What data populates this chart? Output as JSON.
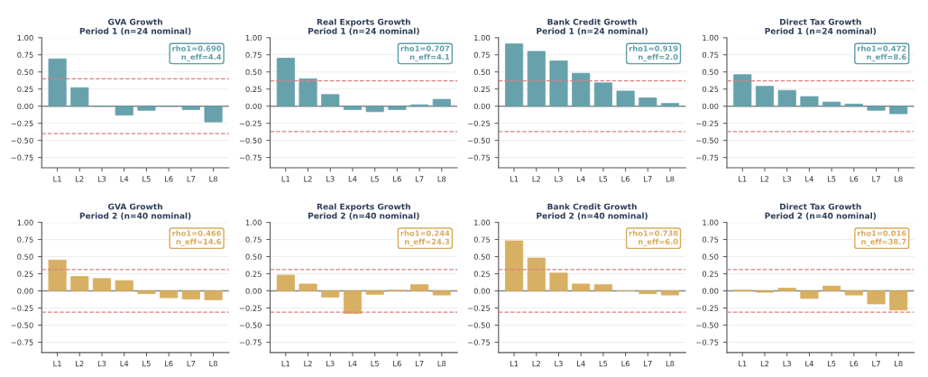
{
  "chart_data": [
    {
      "type": "bar",
      "title": "GVA Growth\nPeriod 1 (n=24 nominal)",
      "categories": [
        "L1",
        "L2",
        "L3",
        "L4",
        "L5",
        "L6",
        "L7",
        "L8"
      ],
      "values": [
        0.69,
        0.27,
        0,
        -0.13,
        -0.06,
        0,
        -0.05,
        -0.23
      ],
      "color": "#5f9ea8",
      "ylim": [
        -0.9,
        1.0
      ],
      "yticks": [
        {
          "value": -0.75,
          "label": "−0.75"
        },
        {
          "value": -0.5,
          "label": "−0.50"
        },
        {
          "value": -0.25,
          "label": "−0.25"
        },
        {
          "value": 0,
          "label": "0.00"
        },
        {
          "value": 0.25,
          "label": "0.25"
        },
        {
          "value": 0.5,
          "label": "0.50"
        },
        {
          "value": 0.75,
          "label": "0.75"
        },
        {
          "value": 1.0,
          "label": "1.00"
        }
      ],
      "grid": "y",
      "ref_lines": [
        {
          "axis": "y",
          "value": 0,
          "color": "#888888",
          "line_style": "solid"
        },
        {
          "axis": "y",
          "value": 0.4,
          "color": "#d98080",
          "line_style": "dashed"
        },
        {
          "axis": "y",
          "value": -0.4,
          "color": "#d98080",
          "line_style": "dashed"
        }
      ],
      "annotations": [
        "rho1=0.690\nn_eff=4.4"
      ]
    },
    {
      "type": "bar",
      "title": "Real Exports Growth\nPeriod 1 (n=24 nominal)",
      "categories": [
        "L1",
        "L2",
        "L3",
        "L4",
        "L5",
        "L6",
        "L7",
        "L8"
      ],
      "values": [
        0.7,
        0.4,
        0.17,
        -0.05,
        -0.08,
        -0.05,
        0.02,
        0.1
      ],
      "color": "#5f9ea8",
      "ylim": [
        -0.9,
        1.0
      ],
      "yticks": [
        {
          "value": -0.75,
          "label": "−0.75"
        },
        {
          "value": -0.5,
          "label": "−0.50"
        },
        {
          "value": -0.25,
          "label": "−0.25"
        },
        {
          "value": 0,
          "label": "0.00"
        },
        {
          "value": 0.25,
          "label": "0.25"
        },
        {
          "value": 0.5,
          "label": "0.50"
        },
        {
          "value": 0.75,
          "label": "0.75"
        },
        {
          "value": 1.0,
          "label": "1.00"
        }
      ],
      "grid": "y",
      "ref_lines": [
        {
          "axis": "y",
          "value": 0,
          "color": "#888888",
          "line_style": "solid"
        },
        {
          "axis": "y",
          "value": 0.37,
          "color": "#d98080",
          "line_style": "dashed"
        },
        {
          "axis": "y",
          "value": -0.37,
          "color": "#d98080",
          "line_style": "dashed"
        }
      ],
      "annotations": [
        "rho1=0.707\nn_eff=4.1"
      ]
    },
    {
      "type": "bar",
      "title": "Bank Credit Growth\nPeriod 1 (n=24 nominal)",
      "categories": [
        "L1",
        "L2",
        "L3",
        "L4",
        "L5",
        "L6",
        "L7",
        "L8"
      ],
      "values": [
        0.91,
        0.8,
        0.66,
        0.48,
        0.34,
        0.22,
        0.12,
        0.04
      ],
      "color": "#5f9ea8",
      "ylim": [
        -0.9,
        1.0
      ],
      "yticks": [
        {
          "value": -0.75,
          "label": "−0.75"
        },
        {
          "value": -0.5,
          "label": "−0.50"
        },
        {
          "value": -0.25,
          "label": "−0.25"
        },
        {
          "value": 0,
          "label": "0.00"
        },
        {
          "value": 0.25,
          "label": "0.25"
        },
        {
          "value": 0.5,
          "label": "0.50"
        },
        {
          "value": 0.75,
          "label": "0.75"
        },
        {
          "value": 1.0,
          "label": "1.00"
        }
      ],
      "grid": "y",
      "ref_lines": [
        {
          "axis": "y",
          "value": 0,
          "color": "#888888",
          "line_style": "solid"
        },
        {
          "axis": "y",
          "value": 0.37,
          "color": "#d98080",
          "line_style": "dashed"
        },
        {
          "axis": "y",
          "value": -0.37,
          "color": "#d98080",
          "line_style": "dashed"
        }
      ],
      "annotations": [
        "rho1=0.919\nn_eff=2.0"
      ]
    },
    {
      "type": "bar",
      "title": "Direct Tax Growth\nPeriod 1 (n=24 nominal)",
      "categories": [
        "L1",
        "L2",
        "L3",
        "L4",
        "L5",
        "L6",
        "L7",
        "L8"
      ],
      "values": [
        0.46,
        0.29,
        0.23,
        0.14,
        0.06,
        0.03,
        -0.06,
        -0.11
      ],
      "color": "#5f9ea8",
      "ylim": [
        -0.9,
        1.0
      ],
      "yticks": [
        {
          "value": -0.75,
          "label": "−0.75"
        },
        {
          "value": -0.5,
          "label": "−0.50"
        },
        {
          "value": -0.25,
          "label": "−0.25"
        },
        {
          "value": 0,
          "label": "0.00"
        },
        {
          "value": 0.25,
          "label": "0.25"
        },
        {
          "value": 0.5,
          "label": "0.50"
        },
        {
          "value": 0.75,
          "label": "0.75"
        },
        {
          "value": 1.0,
          "label": "1.00"
        }
      ],
      "grid": "y",
      "ref_lines": [
        {
          "axis": "y",
          "value": 0,
          "color": "#888888",
          "line_style": "solid"
        },
        {
          "axis": "y",
          "value": 0.37,
          "color": "#d98080",
          "line_style": "dashed"
        },
        {
          "axis": "y",
          "value": -0.37,
          "color": "#d98080",
          "line_style": "dashed"
        }
      ],
      "annotations": [
        "rho1=0.472\nn_eff=8.6"
      ]
    },
    {
      "type": "bar",
      "title": "GVA Growth\nPeriod 2 (n=40 nominal)",
      "categories": [
        "L1",
        "L2",
        "L3",
        "L4",
        "L5",
        "L6",
        "L7",
        "L8"
      ],
      "values": [
        0.45,
        0.21,
        0.18,
        0.15,
        -0.04,
        -0.1,
        -0.12,
        -0.13
      ],
      "color": "#d6ac5b",
      "ylim": [
        -0.9,
        1.0
      ],
      "yticks": [
        {
          "value": -0.75,
          "label": "−0.75"
        },
        {
          "value": -0.5,
          "label": "−0.50"
        },
        {
          "value": -0.25,
          "label": "−0.25"
        },
        {
          "value": 0,
          "label": "0.00"
        },
        {
          "value": 0.25,
          "label": "0.25"
        },
        {
          "value": 0.5,
          "label": "0.50"
        },
        {
          "value": 0.75,
          "label": "0.75"
        },
        {
          "value": 1.0,
          "label": "1.00"
        }
      ],
      "grid": "y",
      "ref_lines": [
        {
          "axis": "y",
          "value": 0,
          "color": "#888888",
          "line_style": "solid"
        },
        {
          "axis": "y",
          "value": 0.31,
          "color": "#d98080",
          "line_style": "dashed"
        },
        {
          "axis": "y",
          "value": -0.31,
          "color": "#d98080",
          "line_style": "dashed"
        }
      ],
      "annotations": [
        "rho1=0.466\nn_eff=14.6"
      ]
    },
    {
      "type": "bar",
      "title": "Real Exports Growth\nPeriod 2 (n=40 nominal)",
      "categories": [
        "L1",
        "L2",
        "L3",
        "L4",
        "L5",
        "L6",
        "L7",
        "L8"
      ],
      "values": [
        0.23,
        0.1,
        -0.09,
        -0.33,
        -0.05,
        0.01,
        0.09,
        -0.06
      ],
      "color": "#d6ac5b",
      "ylim": [
        -0.9,
        1.0
      ],
      "yticks": [
        {
          "value": -0.75,
          "label": "−0.75"
        },
        {
          "value": -0.5,
          "label": "−0.50"
        },
        {
          "value": -0.25,
          "label": "−0.25"
        },
        {
          "value": 0,
          "label": "0.00"
        },
        {
          "value": 0.25,
          "label": "0.25"
        },
        {
          "value": 0.5,
          "label": "0.50"
        },
        {
          "value": 0.75,
          "label": "0.75"
        },
        {
          "value": 1.0,
          "label": "1.00"
        }
      ],
      "grid": "y",
      "ref_lines": [
        {
          "axis": "y",
          "value": 0,
          "color": "#888888",
          "line_style": "solid"
        },
        {
          "axis": "y",
          "value": 0.31,
          "color": "#d98080",
          "line_style": "dashed"
        },
        {
          "axis": "y",
          "value": -0.31,
          "color": "#d98080",
          "line_style": "dashed"
        }
      ],
      "annotations": [
        "rho1=0.244\nn_eff=24.3"
      ]
    },
    {
      "type": "bar",
      "title": "Bank Credit Growth\nPeriod 2 (n=40 nominal)",
      "categories": [
        "L1",
        "L2",
        "L3",
        "L4",
        "L5",
        "L6",
        "L7",
        "L8"
      ],
      "values": [
        0.73,
        0.48,
        0.26,
        0.1,
        0.09,
        0,
        -0.04,
        -0.06
      ],
      "color": "#d6ac5b",
      "ylim": [
        -0.9,
        1.0
      ],
      "yticks": [
        {
          "value": -0.75,
          "label": "−0.75"
        },
        {
          "value": -0.5,
          "label": "−0.50"
        },
        {
          "value": -0.25,
          "label": "−0.25"
        },
        {
          "value": 0,
          "label": "0.00"
        },
        {
          "value": 0.25,
          "label": "0.25"
        },
        {
          "value": 0.5,
          "label": "0.50"
        },
        {
          "value": 0.75,
          "label": "0.75"
        },
        {
          "value": 1.0,
          "label": "1.00"
        }
      ],
      "grid": "y",
      "ref_lines": [
        {
          "axis": "y",
          "value": 0,
          "color": "#888888",
          "line_style": "solid"
        },
        {
          "axis": "y",
          "value": 0.31,
          "color": "#d98080",
          "line_style": "dashed"
        },
        {
          "axis": "y",
          "value": -0.31,
          "color": "#d98080",
          "line_style": "dashed"
        }
      ],
      "annotations": [
        "rho1=0.738\nn_eff=6.0"
      ]
    },
    {
      "type": "bar",
      "title": "Direct Tax Growth\nPeriod 2 (n=40 nominal)",
      "categories": [
        "L1",
        "L2",
        "L3",
        "L4",
        "L5",
        "L6",
        "L7",
        "L8"
      ],
      "values": [
        0.01,
        -0.02,
        0.04,
        -0.11,
        0.07,
        -0.06,
        -0.19,
        -0.28
      ],
      "color": "#d6ac5b",
      "ylim": [
        -0.9,
        1.0
      ],
      "yticks": [
        {
          "value": -0.75,
          "label": "−0.75"
        },
        {
          "value": -0.5,
          "label": "−0.50"
        },
        {
          "value": -0.25,
          "label": "−0.25"
        },
        {
          "value": 0,
          "label": "0.00"
        },
        {
          "value": 0.25,
          "label": "0.25"
        },
        {
          "value": 0.5,
          "label": "0.50"
        },
        {
          "value": 0.75,
          "label": "0.75"
        },
        {
          "value": 1.0,
          "label": "1.00"
        }
      ],
      "grid": "y",
      "ref_lines": [
        {
          "axis": "y",
          "value": 0,
          "color": "#888888",
          "line_style": "solid"
        },
        {
          "axis": "y",
          "value": 0.31,
          "color": "#d98080",
          "line_style": "dashed"
        },
        {
          "axis": "y",
          "value": -0.31,
          "color": "#d98080",
          "line_style": "dashed"
        }
      ],
      "annotations": [
        "rho1=0.016\nn_eff=38.7"
      ]
    }
  ]
}
